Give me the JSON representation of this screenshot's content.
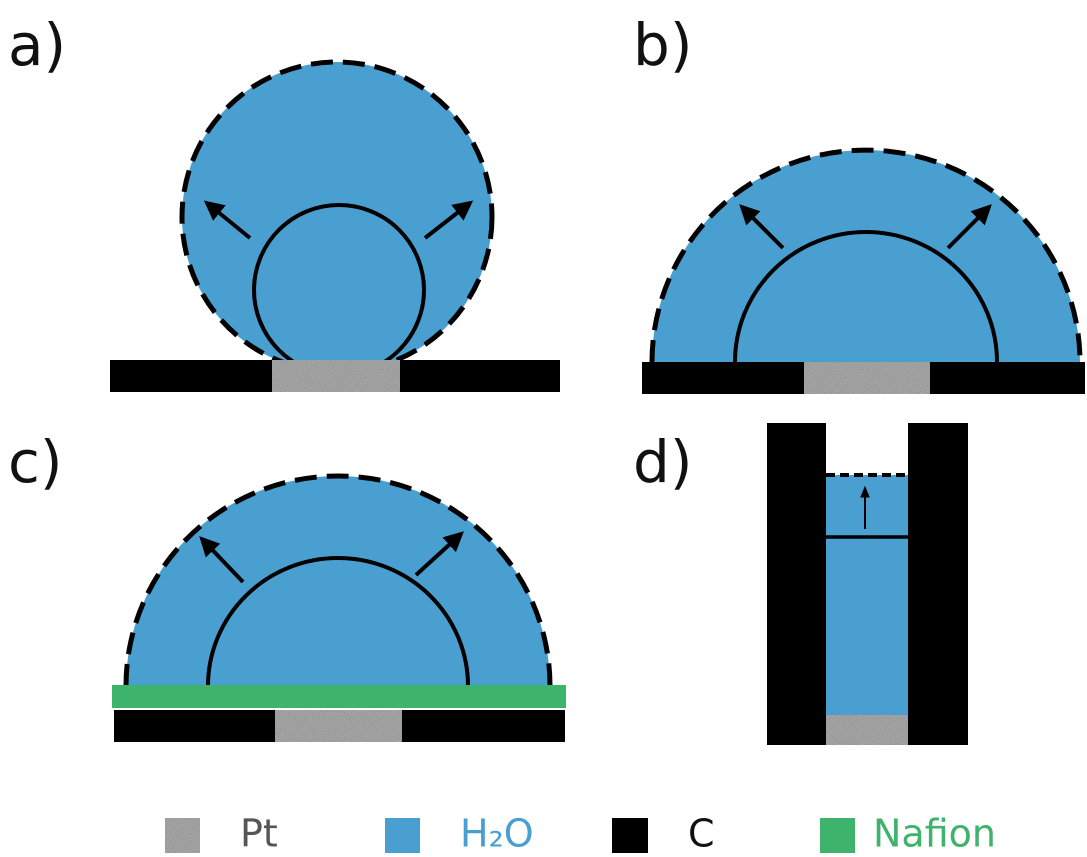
{
  "panels": [
    {
      "label": "a)"
    },
    {
      "label": "b)"
    },
    {
      "label": "c)"
    },
    {
      "label": "d)"
    }
  ],
  "legend": [
    {
      "label": "Pt"
    },
    {
      "label": "H₂O"
    },
    {
      "label": "C"
    },
    {
      "label": "Nafion"
    }
  ]
}
